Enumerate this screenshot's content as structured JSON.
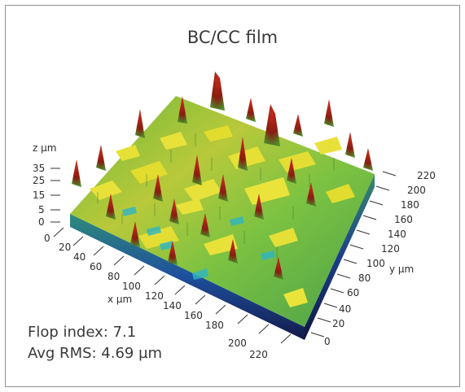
{
  "figure": {
    "title": "BC/CC film",
    "z_axis": {
      "label": "z µm",
      "ticks": [
        "35",
        "25",
        "15",
        "5",
        "0"
      ]
    },
    "x_axis": {
      "label": "x µm",
      "ticks": [
        "0",
        "20",
        "40",
        "60",
        "80",
        "100",
        "120",
        "140",
        "160",
        "180",
        "200",
        "220"
      ]
    },
    "y_axis": {
      "label": "y µm",
      "ticks": [
        "220",
        "200",
        "180",
        "160",
        "140",
        "120",
        "100",
        "80",
        "60",
        "40",
        "20",
        "0"
      ]
    },
    "stats": {
      "flop_index": "Flop index: 7.1",
      "avg_rms": "Avg RMS: 4.69 µm"
    },
    "colors": {
      "low": "#1a4fa3",
      "mid_low": "#1aa6b8",
      "mid": "#7cc242",
      "high": "#e8e13a",
      "peak": "#a31d1d",
      "frame_border": "#8f8f8f"
    }
  }
}
